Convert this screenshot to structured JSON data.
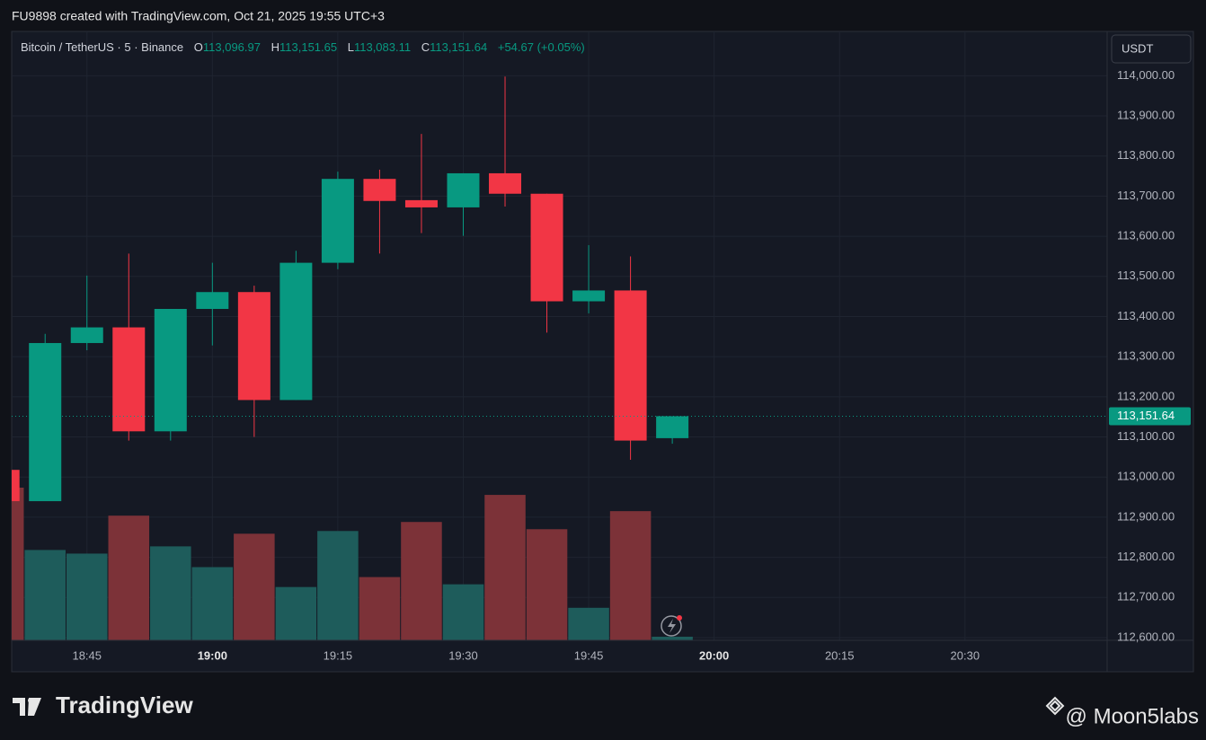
{
  "header": {
    "credit": "FU9898 created with TradingView.com, Oct 21, 2025 19:55 UTC+3"
  },
  "chart_data": {
    "type": "candlestick",
    "symbol": "Bitcoin / TetherUS · 5 · Binance",
    "legend": {
      "open_label": "O",
      "open": "113,096.97",
      "high_label": "H",
      "high": "113,151.65",
      "low_label": "L",
      "low": "113,083.11",
      "close_label": "C",
      "close": "113,151.64",
      "change": "+54.67 (+0.05%)"
    },
    "currency": "USDT",
    "x": [
      "18:35",
      "18:40",
      "18:45",
      "18:50",
      "18:55",
      "19:00",
      "19:05",
      "19:10",
      "19:15",
      "19:20",
      "19:25",
      "19:30",
      "19:35",
      "19:40",
      "19:45",
      "19:50",
      "19:55"
    ],
    "open": [
      113018,
      112940,
      113334,
      113373,
      113114,
      113419,
      113461,
      113192,
      113534,
      113743,
      113690,
      113672,
      113757,
      113706,
      113438,
      113465,
      113096.97
    ],
    "high": [
      113018,
      113357,
      113502,
      113557,
      113419,
      113534,
      113477,
      113564,
      113761,
      113766,
      113855,
      113757,
      113998,
      113706,
      113578,
      113550,
      113151.65
    ],
    "low": [
      112940,
      112940,
      113316,
      113091,
      113091,
      113328,
      113100,
      113192,
      113518,
      113557,
      113608,
      113601,
      113674,
      113360,
      113408,
      113043,
      113083.11
    ],
    "close": [
      112940,
      113334,
      113373,
      113114,
      113419,
      113461,
      113192,
      113534,
      113743,
      113688,
      113672,
      113757,
      113706,
      113438,
      113465,
      113091,
      113151.64
    ],
    "volume": [
      169,
      100,
      96,
      138,
      104,
      81,
      118,
      59,
      121,
      70,
      131,
      62,
      161,
      123,
      36,
      143,
      4
    ],
    "up_color": "#089981",
    "down_color": "#f23645",
    "volume_up_color": "#1e5c5b",
    "volume_down_color": "#7c3238",
    "xlim": [
      "18:36",
      "20:47"
    ],
    "xticks": [
      "18:45",
      "19:00",
      "19:15",
      "19:30",
      "19:45",
      "20:00",
      "20:15",
      "20:30"
    ],
    "ylim": [
      112600,
      114050
    ],
    "yticks": [
      {
        "value": 112600,
        "label": "112,600.00"
      },
      {
        "value": 112700,
        "label": "112,700.00"
      },
      {
        "value": 112800,
        "label": "112,800.00"
      },
      {
        "value": 112900,
        "label": "112,900.00"
      },
      {
        "value": 113000,
        "label": "113,000.00"
      },
      {
        "value": 113100,
        "label": "113,100.00"
      },
      {
        "value": 113200,
        "label": "113,200.00"
      },
      {
        "value": 113300,
        "label": "113,300.00"
      },
      {
        "value": 113400,
        "label": "113,400.00"
      },
      {
        "value": 113500,
        "label": "113,500.00"
      },
      {
        "value": 113600,
        "label": "113,600.00"
      },
      {
        "value": 113700,
        "label": "113,700.00"
      },
      {
        "value": 113800,
        "label": "113,800.00"
      },
      {
        "value": 113900,
        "label": "113,900.00"
      },
      {
        "value": 114000,
        "label": "114,000.00"
      }
    ],
    "last_price": {
      "value": 113151.64,
      "label": "113,151.64"
    },
    "grid": true
  },
  "footer": {
    "brand": "TradingView",
    "watermark": "@ Moon5labs"
  }
}
